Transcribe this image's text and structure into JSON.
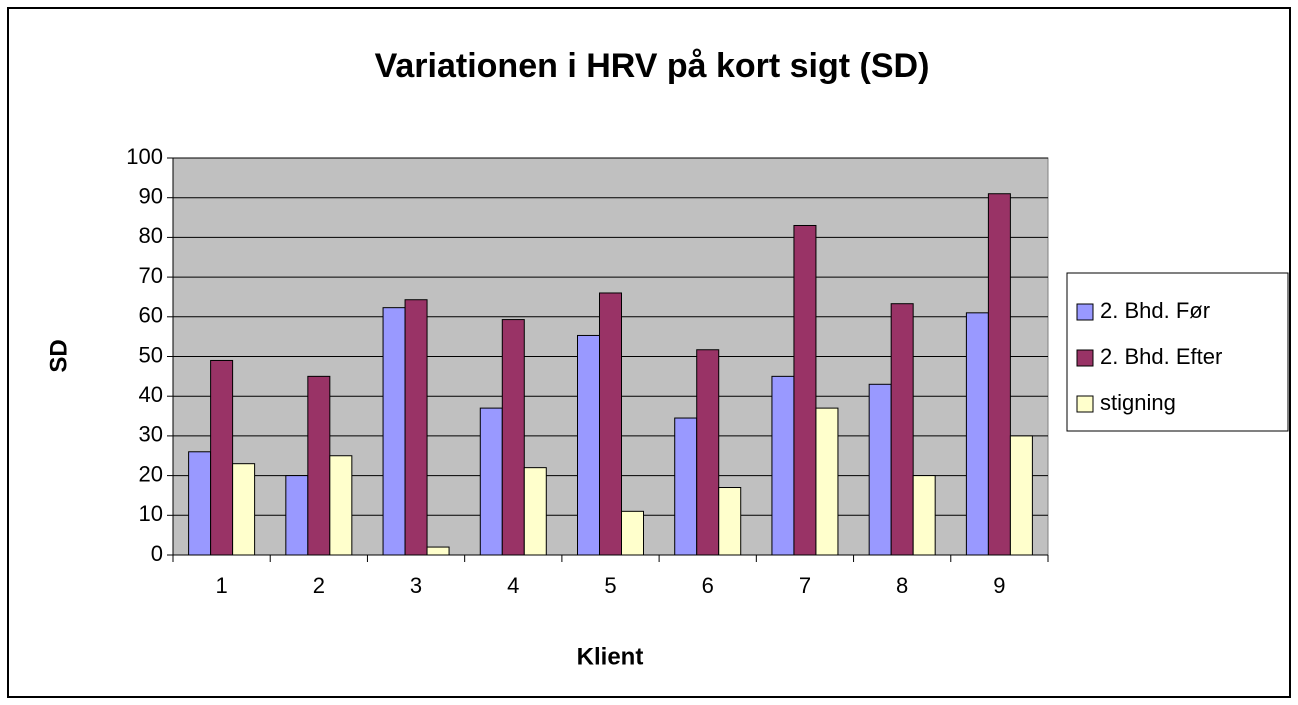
{
  "chart_data": {
    "type": "bar",
    "title": "Variationen i HRV på kort sigt (SD)",
    "x_label": "Klient",
    "y_label": "SD",
    "categories": [
      "1",
      "2",
      "3",
      "4",
      "5",
      "6",
      "7",
      "8",
      "9"
    ],
    "series": [
      {
        "name": "2. Bhd. Før",
        "color": "#9999ff",
        "values": [
          26,
          20,
          62.3,
          37,
          55.3,
          34.5,
          45,
          43,
          61
        ]
      },
      {
        "name": "2. Bhd. Efter",
        "color": "#993366",
        "values": [
          49,
          45,
          64.3,
          59.3,
          66,
          51.7,
          83,
          63.3,
          91
        ]
      },
      {
        "name": "stigning",
        "color": "#ffffcc",
        "values": [
          23,
          25,
          2,
          22,
          11,
          17,
          37,
          20,
          30
        ]
      }
    ],
    "ylim": [
      0,
      100
    ],
    "yticks": [
      0,
      10,
      20,
      30,
      40,
      50,
      60,
      70,
      80,
      90,
      100
    ],
    "grid": true,
    "legend": "right"
  }
}
